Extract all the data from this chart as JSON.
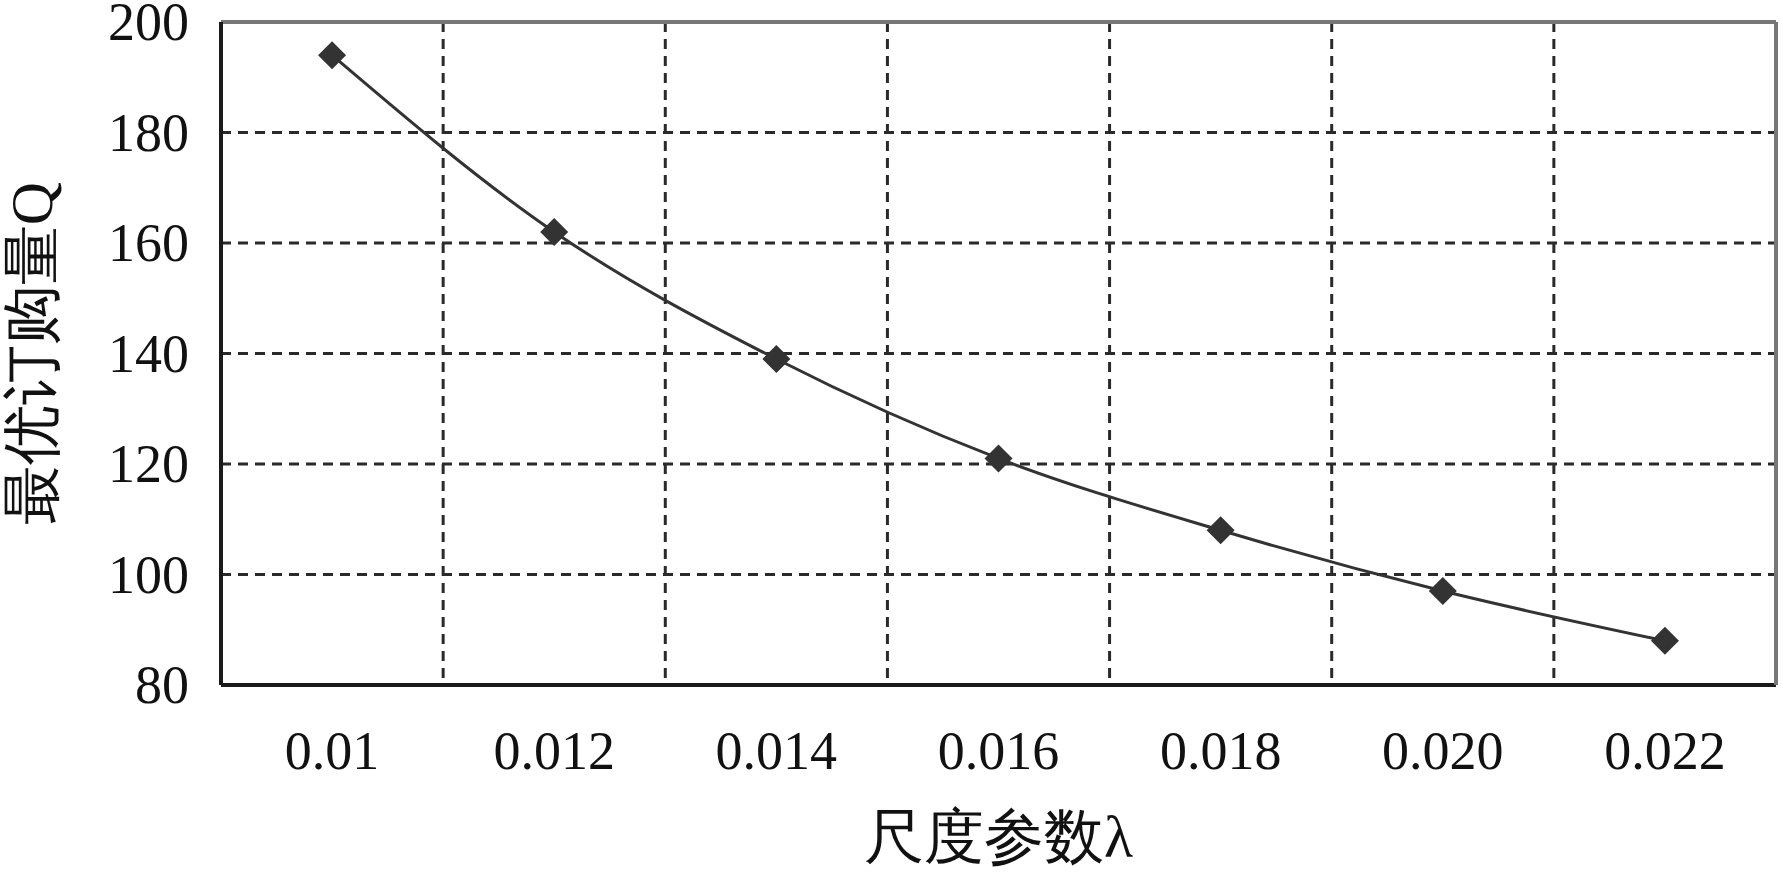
{
  "chart_data": {
    "type": "line",
    "xlabel": "尺度参数λ",
    "ylabel": "最优订购量Q",
    "categories": [
      "0.01",
      "0.012",
      "0.014",
      "0.016",
      "0.018",
      "0.020",
      "0.022"
    ],
    "series": [
      {
        "color": "#333333",
        "values": [
          194,
          162,
          139,
          121,
          108,
          97,
          88
        ]
      }
    ],
    "ylim": [
      80,
      200
    ],
    "yticks": [
      80,
      100,
      120,
      140,
      160,
      180,
      200
    ],
    "grid": true,
    "marker": "diamond",
    "line_style": "solid"
  }
}
